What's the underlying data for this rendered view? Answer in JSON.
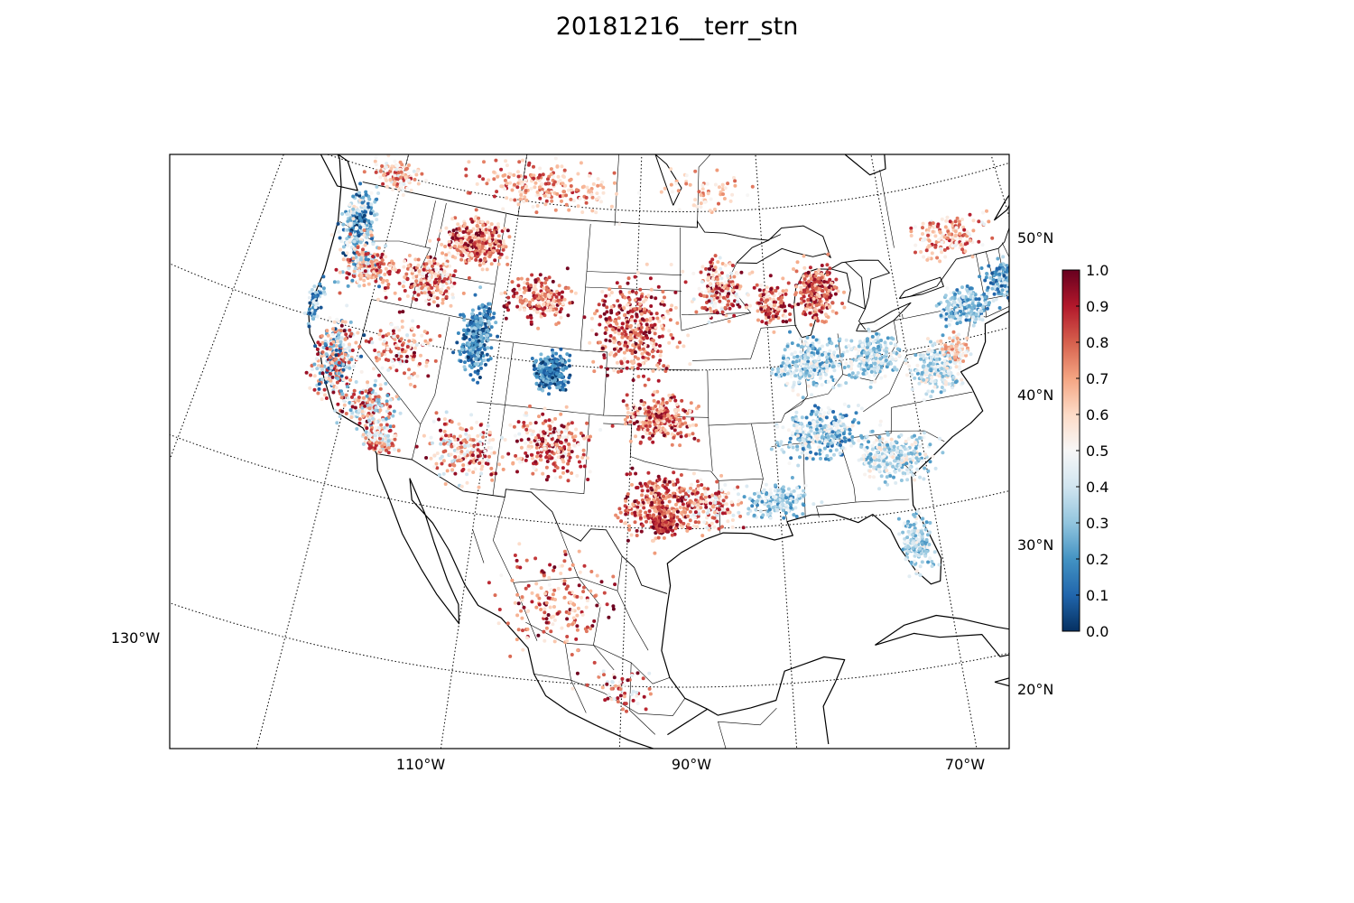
{
  "title": "20181216__terr_stn",
  "map": {
    "projection": "Lambert conformal conic",
    "extent": "Contiguous United States, southern Canada, Mexico and Caribbean",
    "graticule": "dotted",
    "meridians": [
      {
        "lon": -130,
        "label": "130°W"
      },
      {
        "lon": -110,
        "label": "110°W"
      },
      {
        "lon": -90,
        "label": "90°W"
      },
      {
        "lon": -70,
        "label": "70°W"
      }
    ],
    "parallels": [
      {
        "lat": 20,
        "label": "20°N"
      },
      {
        "lat": 30,
        "label": "30°N"
      },
      {
        "lat": 40,
        "label": "40°N"
      },
      {
        "lat": 50,
        "label": "50°N"
      }
    ],
    "features": [
      "coastlines",
      "country borders",
      "state and province borders"
    ],
    "colors": {
      "land_lines": "#000000",
      "background": "#ffffff"
    }
  },
  "colorbar": {
    "colormap": "RdBu_r",
    "min": 0.0,
    "max": 1.0,
    "ticks": [
      "0.0",
      "0.1",
      "0.2",
      "0.3",
      "0.4",
      "0.5",
      "0.6",
      "0.7",
      "0.8",
      "0.9",
      "1.0"
    ],
    "stops": [
      "#053061",
      "#2166ac",
      "#4393c3",
      "#92c5de",
      "#d1e5f0",
      "#f7f7f7",
      "#fddbc7",
      "#f4a582",
      "#d6604d",
      "#b2182b",
      "#67001f"
    ]
  },
  "stations": {
    "description": "Station scatter points colored by value (0-1)",
    "regions": [
      {
        "name": "Pacific Northwest",
        "value_range": [
          0.0,
          0.6
        ]
      },
      {
        "name": "California coast and Sierra",
        "value_range": [
          0.0,
          1.0
        ]
      },
      {
        "name": "Northern Rockies / Montana",
        "value_range": [
          0.6,
          1.0
        ]
      },
      {
        "name": "Utah / Wyoming mountains",
        "value_range": [
          0.0,
          0.3
        ]
      },
      {
        "name": "Colorado Rockies",
        "value_range": [
          0.0,
          0.3
        ]
      },
      {
        "name": "Great Plains",
        "value_range": [
          0.6,
          1.0
        ]
      },
      {
        "name": "Central Texas",
        "value_range": [
          0.7,
          1.0
        ]
      },
      {
        "name": "Upper Midwest / Michigan",
        "value_range": [
          0.6,
          1.0
        ]
      },
      {
        "name": "Ohio Valley / Southeast",
        "value_range": [
          0.15,
          0.5
        ]
      },
      {
        "name": "Northeast / New England",
        "value_range": [
          0.1,
          0.5
        ]
      },
      {
        "name": "Florida",
        "value_range": [
          0.2,
          0.5
        ]
      },
      {
        "name": "Mexico",
        "value_range": [
          0.5,
          1.0
        ]
      },
      {
        "name": "Southern Canada",
        "value_range": [
          0.5,
          0.9
        ]
      }
    ]
  }
}
